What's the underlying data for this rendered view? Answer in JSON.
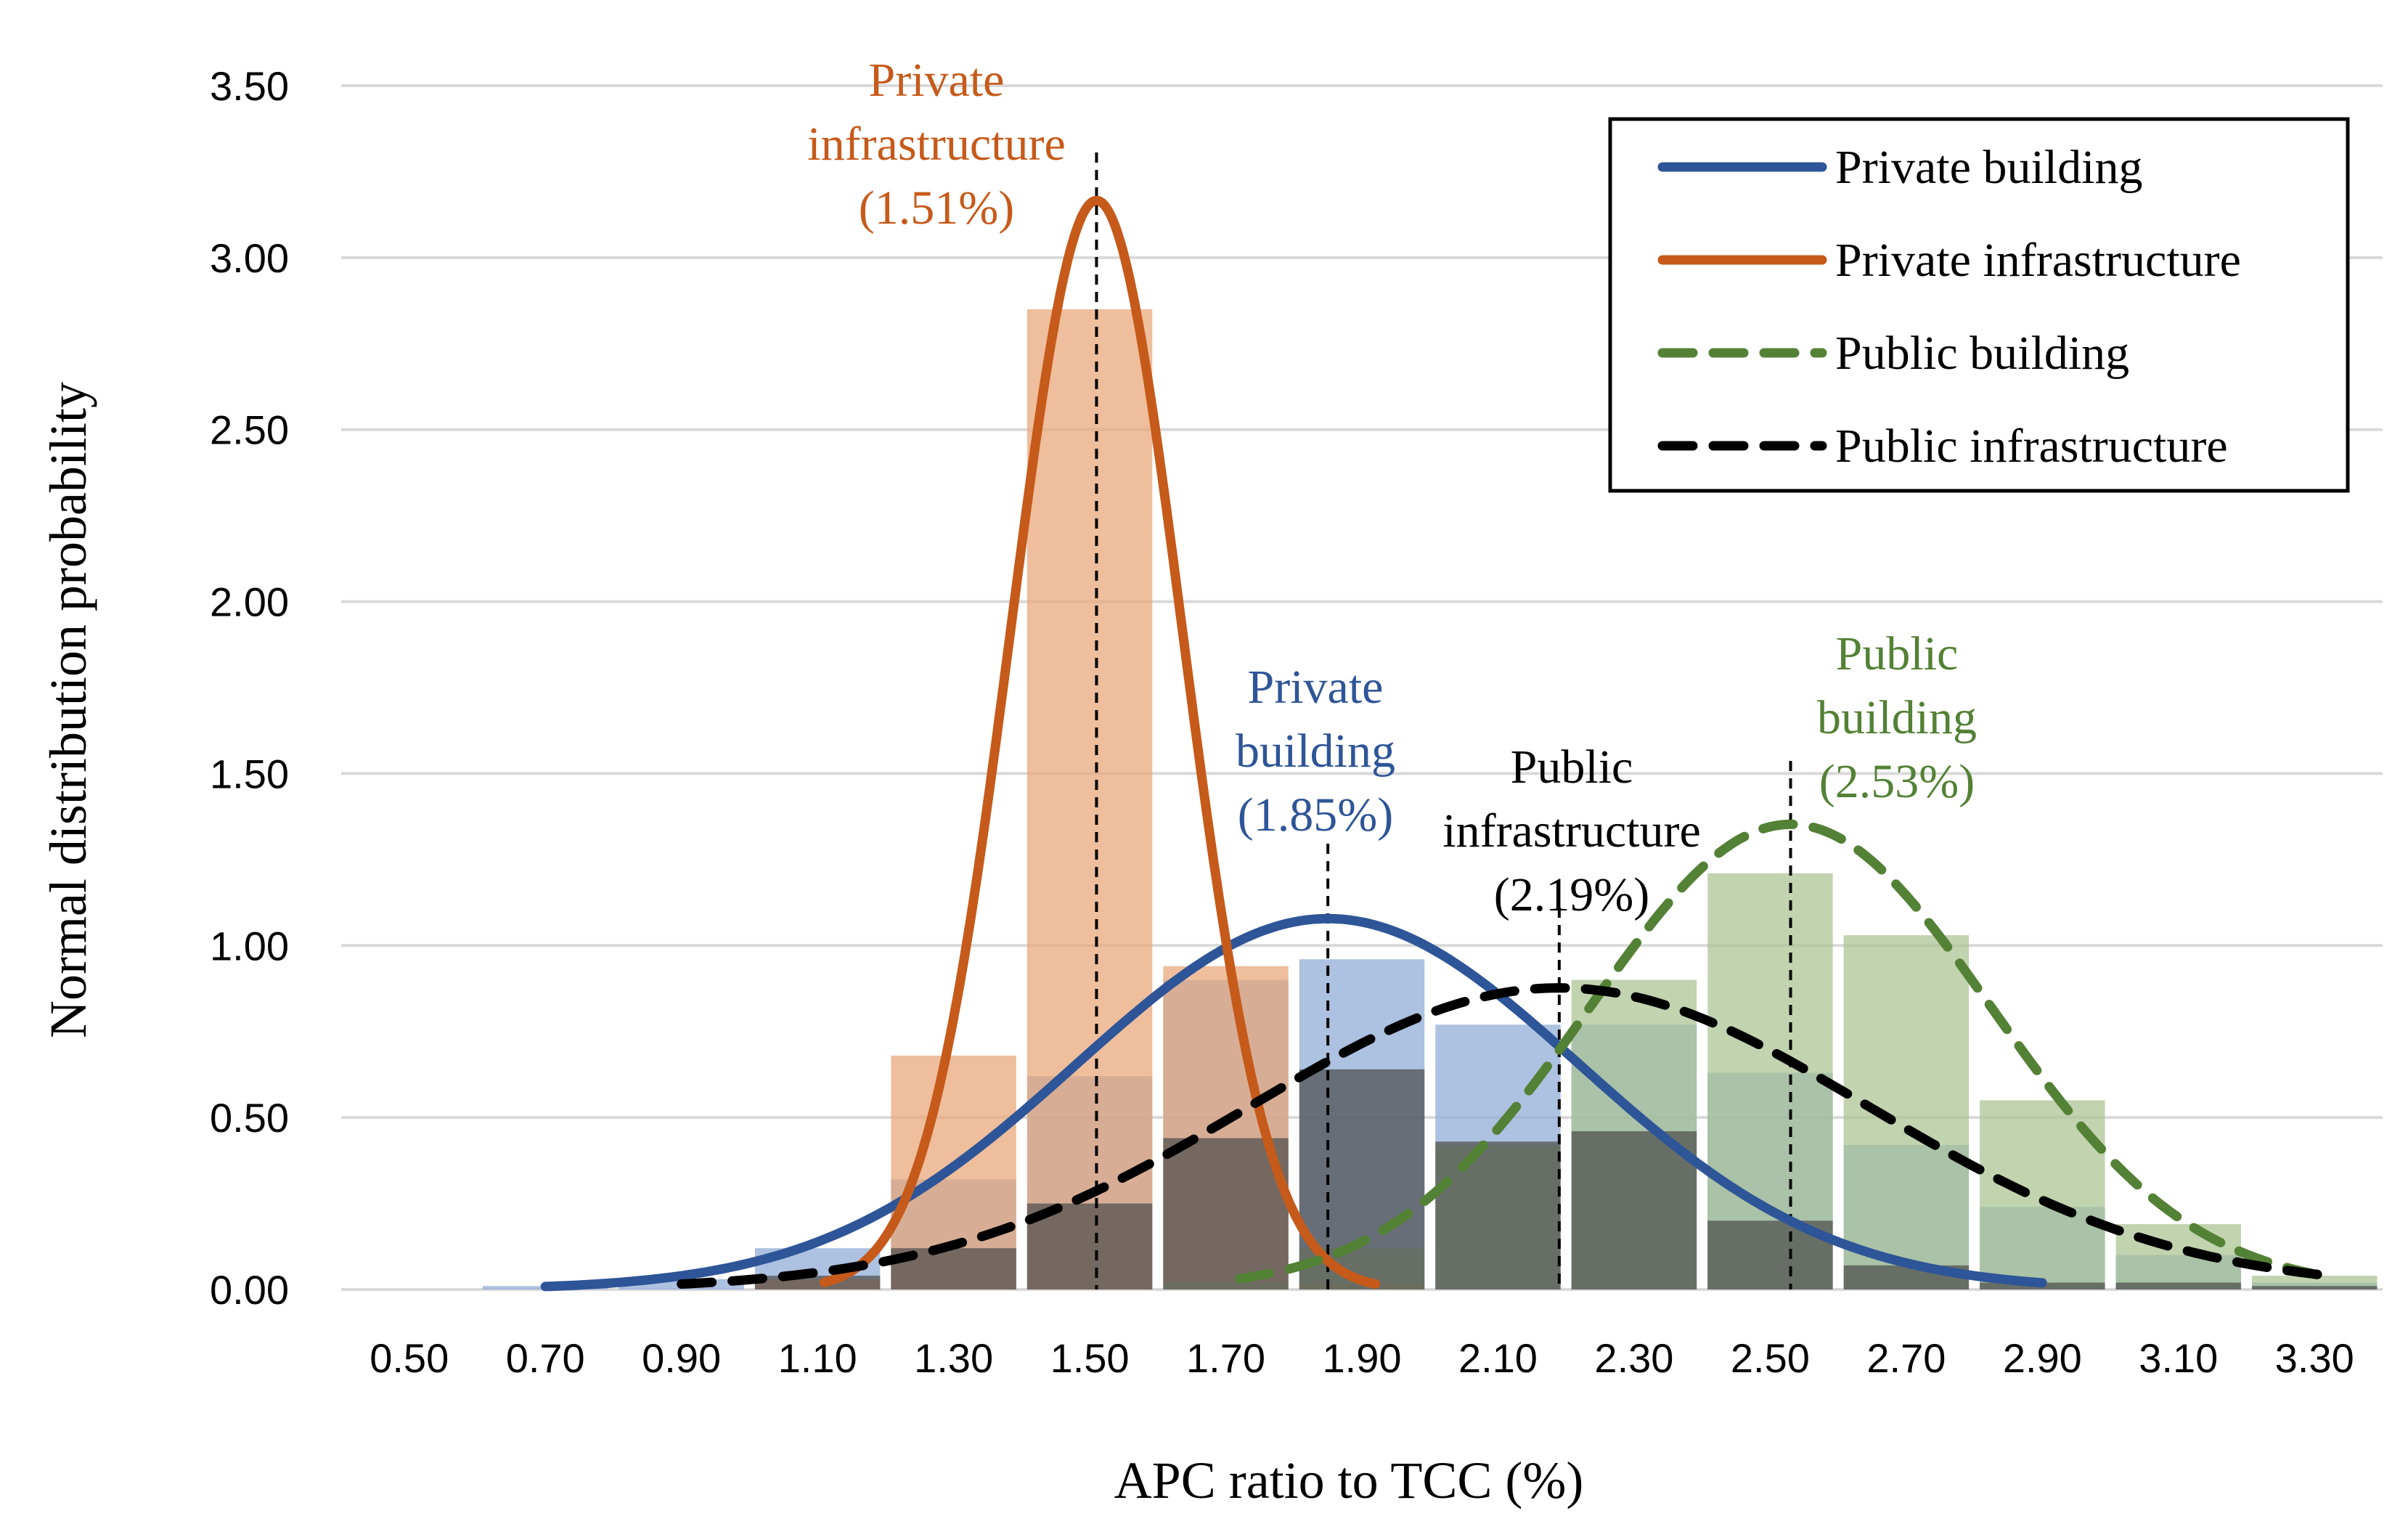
{
  "chart_data": {
    "type": "bar",
    "title": "",
    "xlabel": "APC ratio to TCC (%)",
    "ylabel": "Normal distribution probability",
    "ylim": [
      0,
      3.5
    ],
    "xlim": [
      0.4,
      3.4
    ],
    "yticks": [
      "0.00",
      "0.50",
      "1.00",
      "1.50",
      "2.00",
      "2.50",
      "3.00",
      "3.50"
    ],
    "xticks": [
      "0.50",
      "0.70",
      "0.90",
      "1.10",
      "1.30",
      "1.50",
      "1.70",
      "1.90",
      "2.10",
      "2.30",
      "2.50",
      "2.70",
      "2.90",
      "3.10",
      "3.30"
    ],
    "grid": true,
    "legend_position": "top-right",
    "histogram_bins": [
      0.7,
      0.9,
      1.1,
      1.3,
      1.5,
      1.7,
      1.9,
      2.1,
      2.3,
      2.5,
      2.7,
      2.9,
      3.1,
      3.3
    ],
    "series": [
      {
        "name": "Private building",
        "color": "#2e5597",
        "bar_color": "#8ea9d4",
        "dash": "solid",
        "mean": 1.85,
        "sd": 0.37,
        "curve_range": [
          0.7,
          2.9
        ],
        "histogram": [
          0.01,
          0.03,
          0.12,
          0.32,
          0.62,
          0.9,
          0.96,
          0.77,
          0.77,
          0.63,
          0.42,
          0.24,
          0.1,
          0.02
        ]
      },
      {
        "name": "Private infrastructure",
        "color": "#c65a1a",
        "bar_color": "#e8a577",
        "dash": "solid",
        "mean": 1.51,
        "sd": 0.126,
        "curve_range": [
          1.11,
          1.92
        ],
        "histogram": [
          0,
          0,
          0.03,
          0.68,
          2.85,
          0.94,
          0.02,
          0,
          0,
          0,
          0,
          0,
          0,
          0
        ]
      },
      {
        "name": "Public building",
        "color": "#538135",
        "bar_color": "#a9c290",
        "dash": "dashed",
        "mean": 2.53,
        "sd": 0.295,
        "curve_range": [
          1.72,
          3.32
        ],
        "histogram": [
          0,
          0,
          0,
          0,
          0,
          0.02,
          0.12,
          0.42,
          0.9,
          1.21,
          1.03,
          0.55,
          0.19,
          0.04
        ]
      },
      {
        "name": "Public infrastructure",
        "color": "#000000",
        "bar_color": "#4d4d4d",
        "dash": "dashed",
        "mean": 2.19,
        "sd": 0.455,
        "curve_range": [
          0.9,
          3.32
        ],
        "histogram": [
          0,
          0,
          0.04,
          0.12,
          0.25,
          0.44,
          0.64,
          0.43,
          0.46,
          0.2,
          0.07,
          0.02,
          0.02,
          0.01
        ]
      }
    ],
    "annotations": [
      {
        "series": "Private infrastructure",
        "lines": [
          "Private",
          "infrastructure",
          "(1.51%)"
        ],
        "marker_x": 1.51,
        "color": "#c65a1a"
      },
      {
        "series": "Private building",
        "lines": [
          "Private",
          "building",
          "(1.85%)"
        ],
        "marker_x": 1.85,
        "color": "#2e5597"
      },
      {
        "series": "Public infrastructure",
        "lines": [
          "Public",
          "infrastructure",
          "(2.19%)"
        ],
        "marker_x": 2.19,
        "color": "#000000"
      },
      {
        "series": "Public building",
        "lines": [
          "Public",
          "building",
          "(2.53%)"
        ],
        "marker_x": 2.53,
        "color": "#538135"
      }
    ]
  }
}
